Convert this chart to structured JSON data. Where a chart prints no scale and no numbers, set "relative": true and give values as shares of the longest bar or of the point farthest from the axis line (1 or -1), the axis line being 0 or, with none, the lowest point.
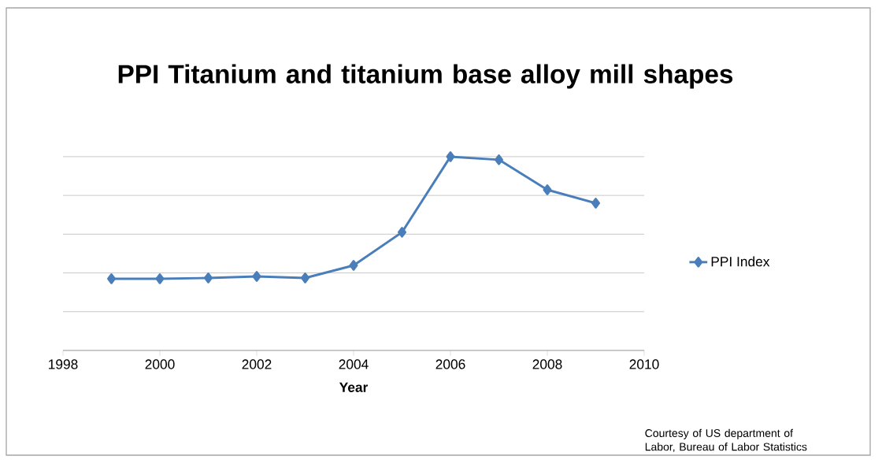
{
  "chart_data": {
    "type": "line",
    "title": "PPI Titanium and titanium base alloy mill shapes",
    "xlabel": "Year",
    "relative": true,
    "x": [
      1999,
      2000,
      2001,
      2002,
      2003,
      2004,
      2005,
      2006,
      2007,
      2008,
      2009
    ],
    "series": [
      {
        "name": "PPI Index",
        "color": "#4a7ebb",
        "values": [
          0.37,
          0.37,
          0.374,
          0.382,
          0.374,
          0.439,
          0.61,
          1,
          0.984,
          0.829,
          0.76
        ]
      }
    ],
    "xlim": [
      1998,
      2010
    ],
    "xticks": [
      1998,
      2000,
      2002,
      2004,
      2006,
      2008,
      2010
    ],
    "grid": "y",
    "legend": "right",
    "marker": "diamond",
    "line_style": "solid",
    "annotations": [
      "Courtesy of US department of Labor, Bureau of Labor Statistics"
    ]
  }
}
